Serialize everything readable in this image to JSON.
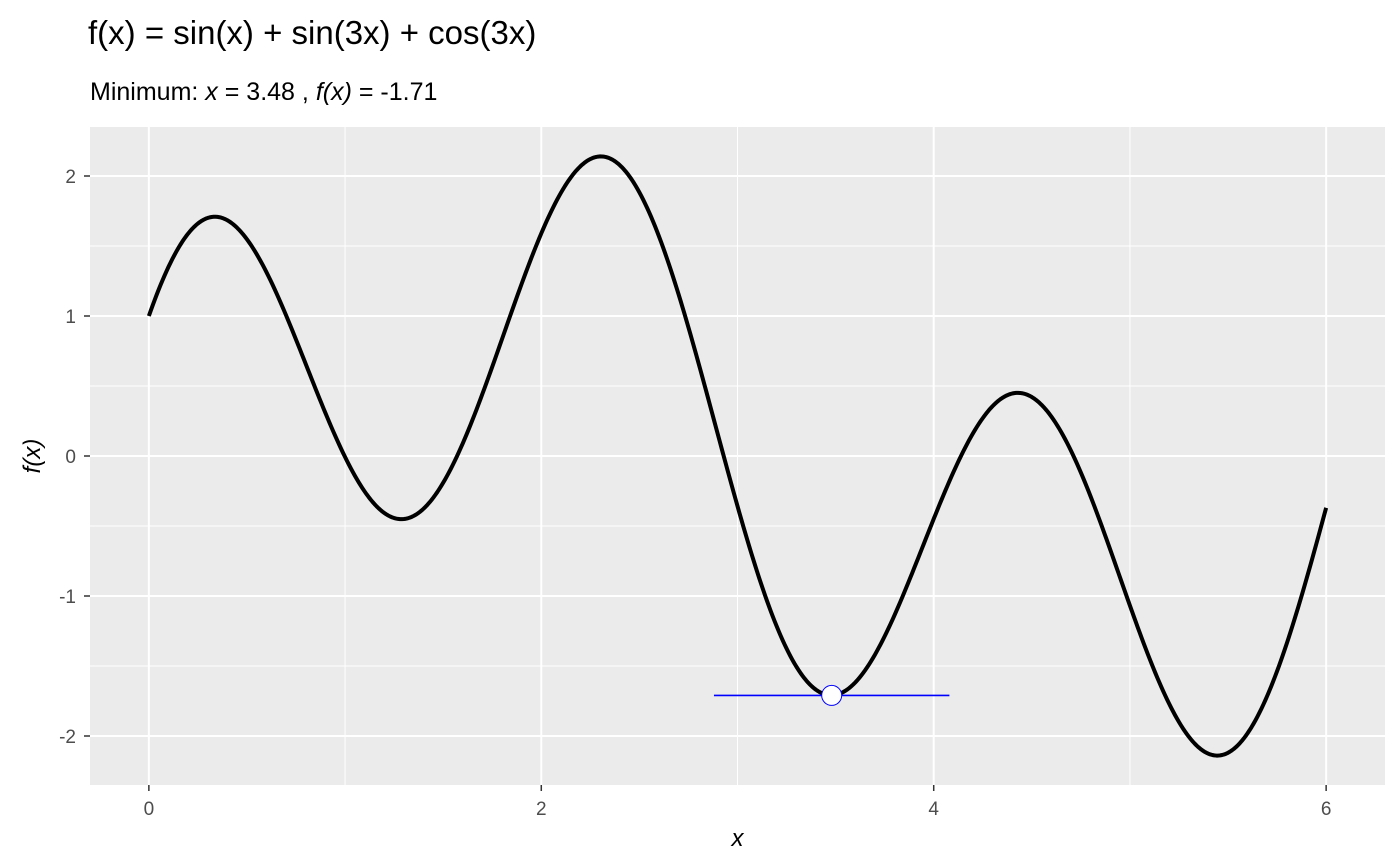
{
  "chart_data": {
    "type": "line",
    "title": "f(x) = sin(x) + sin(3x) + cos(3x)",
    "subtitle": {
      "prefix": "Minimum:",
      "x_label": "x",
      "x_eq": "= 3.48 ,",
      "fx_label": "f(x)",
      "fx_eq": "= -1.71"
    },
    "xlabel": "x",
    "ylabel": "f(x)",
    "xlim": [
      -0.3,
      6.3
    ],
    "ylim": [
      -2.35,
      2.35
    ],
    "x_ticks": [
      0,
      2,
      4,
      6
    ],
    "x_tick_labels": [
      "0",
      "2",
      "4",
      "6"
    ],
    "y_ticks": [
      -2,
      -1,
      0,
      1,
      2
    ],
    "y_tick_labels": [
      "-2",
      "-1",
      "0",
      "1",
      "2"
    ],
    "grid": true,
    "series": [
      {
        "expression": "sin(x) + sin(3x) + cos(3x)",
        "x_range": [
          0,
          6
        ],
        "color": "#000000"
      }
    ],
    "minimum_point": {
      "x": 3.48,
      "y": -1.71
    },
    "minimum_segment": {
      "x": [
        2.88,
        4.08
      ],
      "y": -1.71,
      "color": "#0000ff"
    },
    "colors": {
      "panel": "#ebebeb",
      "grid": "#ffffff",
      "curve": "#000000",
      "marker_stroke": "#0000ff",
      "marker_fill": "#ffffff"
    }
  }
}
